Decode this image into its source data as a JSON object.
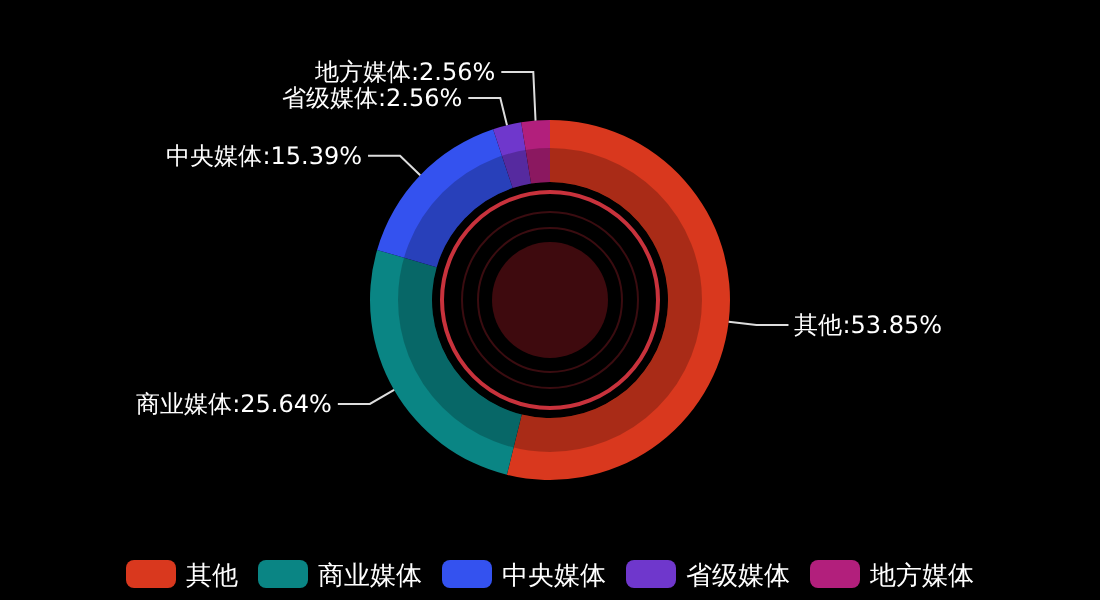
{
  "chart_data": {
    "type": "donut",
    "categories": [
      "其他",
      "商业媒体",
      "中央媒体",
      "省级媒体",
      "地方媒体"
    ],
    "values": [
      53.85,
      25.64,
      15.39,
      2.56,
      2.56
    ],
    "colors": [
      "#d9381e",
      "#0a8584",
      "#3452ef",
      "#6f37cc",
      "#b21f7c"
    ],
    "value_labels": [
      "其他:53.85%",
      "商业媒体:25.64%",
      "中央媒体:15.39%",
      "省级媒体:2.56%",
      "地方媒体:2.56%"
    ],
    "legend": "bottom"
  }
}
